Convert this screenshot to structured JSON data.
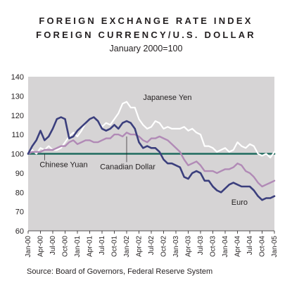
{
  "chart_data": {
    "type": "line",
    "title_lines": [
      "FOREIGN EXCHANGE RATE INDEX",
      "FOREIGN CURRENCY/U.S. DOLLAR"
    ],
    "subtitle": "January 2000=100",
    "source": "Source: Board of Governors, Federal Reserve System",
    "ylim": [
      60,
      140
    ],
    "yticks": [
      60,
      70,
      80,
      90,
      100,
      110,
      120,
      130,
      140
    ],
    "grid": false,
    "xlim": [
      0,
      60
    ],
    "xticks": [
      {
        "month": 0,
        "label": "Jan-00"
      },
      {
        "month": 3,
        "label": "Apr-00"
      },
      {
        "month": 6,
        "label": "Jul-00"
      },
      {
        "month": 9,
        "label": "Oct-00"
      },
      {
        "month": 12,
        "label": "Jan-01"
      },
      {
        "month": 15,
        "label": "Apr-01"
      },
      {
        "month": 18,
        "label": "Jul-01"
      },
      {
        "month": 21,
        "label": "Oct-01"
      },
      {
        "month": 24,
        "label": "Jan-02"
      },
      {
        "month": 27,
        "label": "Apr-02"
      },
      {
        "month": 30,
        "label": "Jul-02"
      },
      {
        "month": 33,
        "label": "Oct-02"
      },
      {
        "month": 36,
        "label": "Jan-03"
      },
      {
        "month": 39,
        "label": "Apr-03"
      },
      {
        "month": 42,
        "label": "Jul-03"
      },
      {
        "month": 45,
        "label": "Oct-03"
      },
      {
        "month": 48,
        "label": "Jan-04"
      },
      {
        "month": 51,
        "label": "Apr-04"
      },
      {
        "month": 54,
        "label": "Jul-04"
      },
      {
        "month": 57,
        "label": "Oct-04"
      },
      {
        "month": 60,
        "label": "Jan-05"
      }
    ],
    "reference_line": {
      "value": 100,
      "color": "#1f6b5e"
    },
    "series": [
      {
        "name": "Japanese Yen",
        "color": "#ffffff",
        "values": [
          100,
          102,
          100,
          103,
          102,
          104,
          102,
          102,
          103,
          106,
          109,
          111,
          109,
          112,
          116,
          118,
          119,
          117,
          114,
          116,
          115,
          118,
          121,
          126,
          127,
          124,
          124,
          118,
          115,
          113,
          114,
          117,
          116,
          113,
          114,
          113,
          113,
          113,
          114,
          112,
          113,
          111,
          110,
          104,
          104,
          103,
          101,
          102,
          103,
          101,
          102,
          106,
          104,
          103,
          105,
          104,
          100,
          99,
          100,
          98,
          101
        ],
        "label_anchor_month": 27
      },
      {
        "name": "Euro",
        "color": "#3b3f7d",
        "values": [
          100,
          104,
          107,
          112,
          107,
          109,
          113,
          118,
          119,
          118,
          108,
          109,
          112,
          114,
          116,
          118,
          119,
          117,
          113,
          112,
          113,
          115,
          113,
          116,
          117,
          116,
          113,
          106,
          103,
          104,
          103,
          103,
          101,
          97,
          95,
          95,
          94,
          93,
          88,
          87,
          90,
          91,
          90,
          86,
          86,
          83,
          81,
          80,
          82,
          84,
          85,
          84,
          83,
          83,
          83,
          81,
          78,
          76,
          77,
          77,
          78
        ],
        "label_anchor_month": 56
      },
      {
        "name": "Canadian Dollar",
        "color": "#b18ab6",
        "values": [
          100,
          101,
          101,
          101,
          102,
          102,
          102,
          103,
          104,
          104,
          106,
          107,
          105,
          106,
          107,
          107,
          106,
          106,
          107,
          108,
          108,
          110,
          110,
          109,
          111,
          110,
          110,
          109,
          107,
          106,
          108,
          108,
          109,
          108,
          107,
          105,
          103,
          101,
          97,
          94,
          95,
          96,
          94,
          91,
          91,
          91,
          90,
          91,
          92,
          92,
          93,
          95,
          94,
          91,
          90,
          88,
          85,
          83,
          84,
          85,
          86
        ],
        "label_anchor_month": 24
      },
      {
        "name": "Chinese Yuan",
        "color": "#1f6b5e",
        "values": [
          100,
          100,
          100,
          100,
          100,
          100,
          100,
          100,
          100,
          100,
          100,
          100,
          100,
          100,
          100,
          100,
          100,
          100,
          100,
          100,
          100,
          100,
          100,
          100,
          100,
          100,
          100,
          100,
          100,
          100,
          100,
          100,
          100,
          100,
          100,
          100,
          100,
          100,
          100,
          100,
          100,
          100,
          100,
          100,
          100,
          100,
          100,
          100,
          100,
          100,
          100,
          100,
          100,
          100,
          100,
          100,
          100,
          100,
          100,
          100,
          100
        ],
        "label_anchor_month": 4
      }
    ]
  }
}
